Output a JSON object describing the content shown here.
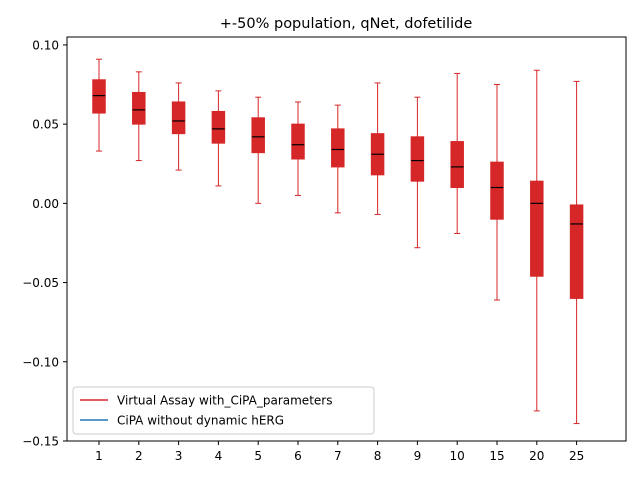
{
  "chart_data": {
    "type": "boxplot",
    "title": "+-50% population, qNet, dofetilide",
    "xlabel": "",
    "ylabel": "",
    "categories": [
      "1",
      "2",
      "3",
      "4",
      "5",
      "6",
      "7",
      "8",
      "9",
      "10",
      "15",
      "20",
      "25"
    ],
    "ylim": [
      -0.15,
      0.105
    ],
    "yticks": [
      -0.15,
      -0.1,
      -0.05,
      0.0,
      0.05,
      0.1
    ],
    "ytick_labels": [
      "−0.15",
      "−0.10",
      "−0.05",
      "0.00",
      "0.05",
      "0.10"
    ],
    "box_color": "#d62728",
    "median_color": "#000000",
    "boxes": [
      {
        "label": "1",
        "whislo": 0.033,
        "q1": 0.057,
        "med": 0.068,
        "q3": 0.078,
        "whishi": 0.091
      },
      {
        "label": "2",
        "whislo": 0.027,
        "q1": 0.05,
        "med": 0.059,
        "q3": 0.07,
        "whishi": 0.083
      },
      {
        "label": "3",
        "whislo": 0.021,
        "q1": 0.044,
        "med": 0.052,
        "q3": 0.064,
        "whishi": 0.076
      },
      {
        "label": "4",
        "whislo": 0.011,
        "q1": 0.038,
        "med": 0.047,
        "q3": 0.058,
        "whishi": 0.071
      },
      {
        "label": "5",
        "whislo": 0.0,
        "q1": 0.032,
        "med": 0.042,
        "q3": 0.054,
        "whishi": 0.067
      },
      {
        "label": "6",
        "whislo": 0.005,
        "q1": 0.028,
        "med": 0.037,
        "q3": 0.05,
        "whishi": 0.064
      },
      {
        "label": "7",
        "whislo": -0.006,
        "q1": 0.023,
        "med": 0.034,
        "q3": 0.047,
        "whishi": 0.062
      },
      {
        "label": "8",
        "whislo": -0.007,
        "q1": 0.018,
        "med": 0.031,
        "q3": 0.044,
        "whishi": 0.076
      },
      {
        "label": "9",
        "whislo": -0.028,
        "q1": 0.014,
        "med": 0.027,
        "q3": 0.042,
        "whishi": 0.067
      },
      {
        "label": "10",
        "whislo": -0.019,
        "q1": 0.01,
        "med": 0.023,
        "q3": 0.039,
        "whishi": 0.082
      },
      {
        "label": "15",
        "whislo": -0.061,
        "q1": -0.01,
        "med": 0.01,
        "q3": 0.026,
        "whishi": 0.075
      },
      {
        "label": "20",
        "whislo": -0.131,
        "q1": -0.046,
        "med": 0.0,
        "q3": 0.014,
        "whishi": 0.084
      },
      {
        "label": "25",
        "whislo": -0.139,
        "q1": -0.06,
        "med": -0.013,
        "q3": -0.001,
        "whishi": 0.077
      }
    ],
    "legend": {
      "placement": "lower-left",
      "entries": [
        {
          "label": "Virtual Assay with_CiPA_parameters",
          "color": "#d62728"
        },
        {
          "label": "CiPA without dynamic hERG",
          "color": "#1f77b4"
        }
      ]
    }
  }
}
